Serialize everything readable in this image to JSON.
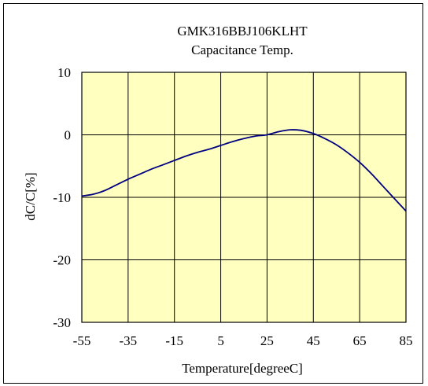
{
  "chart_data": {
    "type": "line",
    "title": "GMK316BBJ106KLHT",
    "subtitle": "Capacitance Temp.",
    "xlabel": "Temperature[degreeC]",
    "ylabel": "dC/C[%]",
    "xlim": [
      -55,
      85
    ],
    "ylim": [
      -30,
      10
    ],
    "xticks": [
      -55,
      -35,
      -15,
      5,
      25,
      45,
      65,
      85
    ],
    "yticks": [
      10,
      0,
      -10,
      -20,
      -30
    ],
    "grid": true,
    "plot_background": "#ffffc0",
    "series": [
      {
        "color": "#000080",
        "x": [
          -55,
          -50,
          -45,
          -40,
          -35,
          -30,
          -25,
          -20,
          -15,
          -10,
          -5,
          0,
          5,
          10,
          15,
          20,
          25,
          30,
          35,
          40,
          45,
          50,
          55,
          60,
          65,
          70,
          75,
          80,
          85
        ],
        "y": [
          -9.8,
          -9.5,
          -8.9,
          -8.0,
          -7.1,
          -6.3,
          -5.5,
          -4.8,
          -4.1,
          -3.4,
          -2.8,
          -2.3,
          -1.7,
          -1.1,
          -0.6,
          -0.2,
          0.0,
          0.5,
          0.8,
          0.7,
          0.2,
          -0.6,
          -1.6,
          -2.9,
          -4.4,
          -6.2,
          -8.2,
          -10.2,
          -12.2
        ]
      }
    ]
  }
}
